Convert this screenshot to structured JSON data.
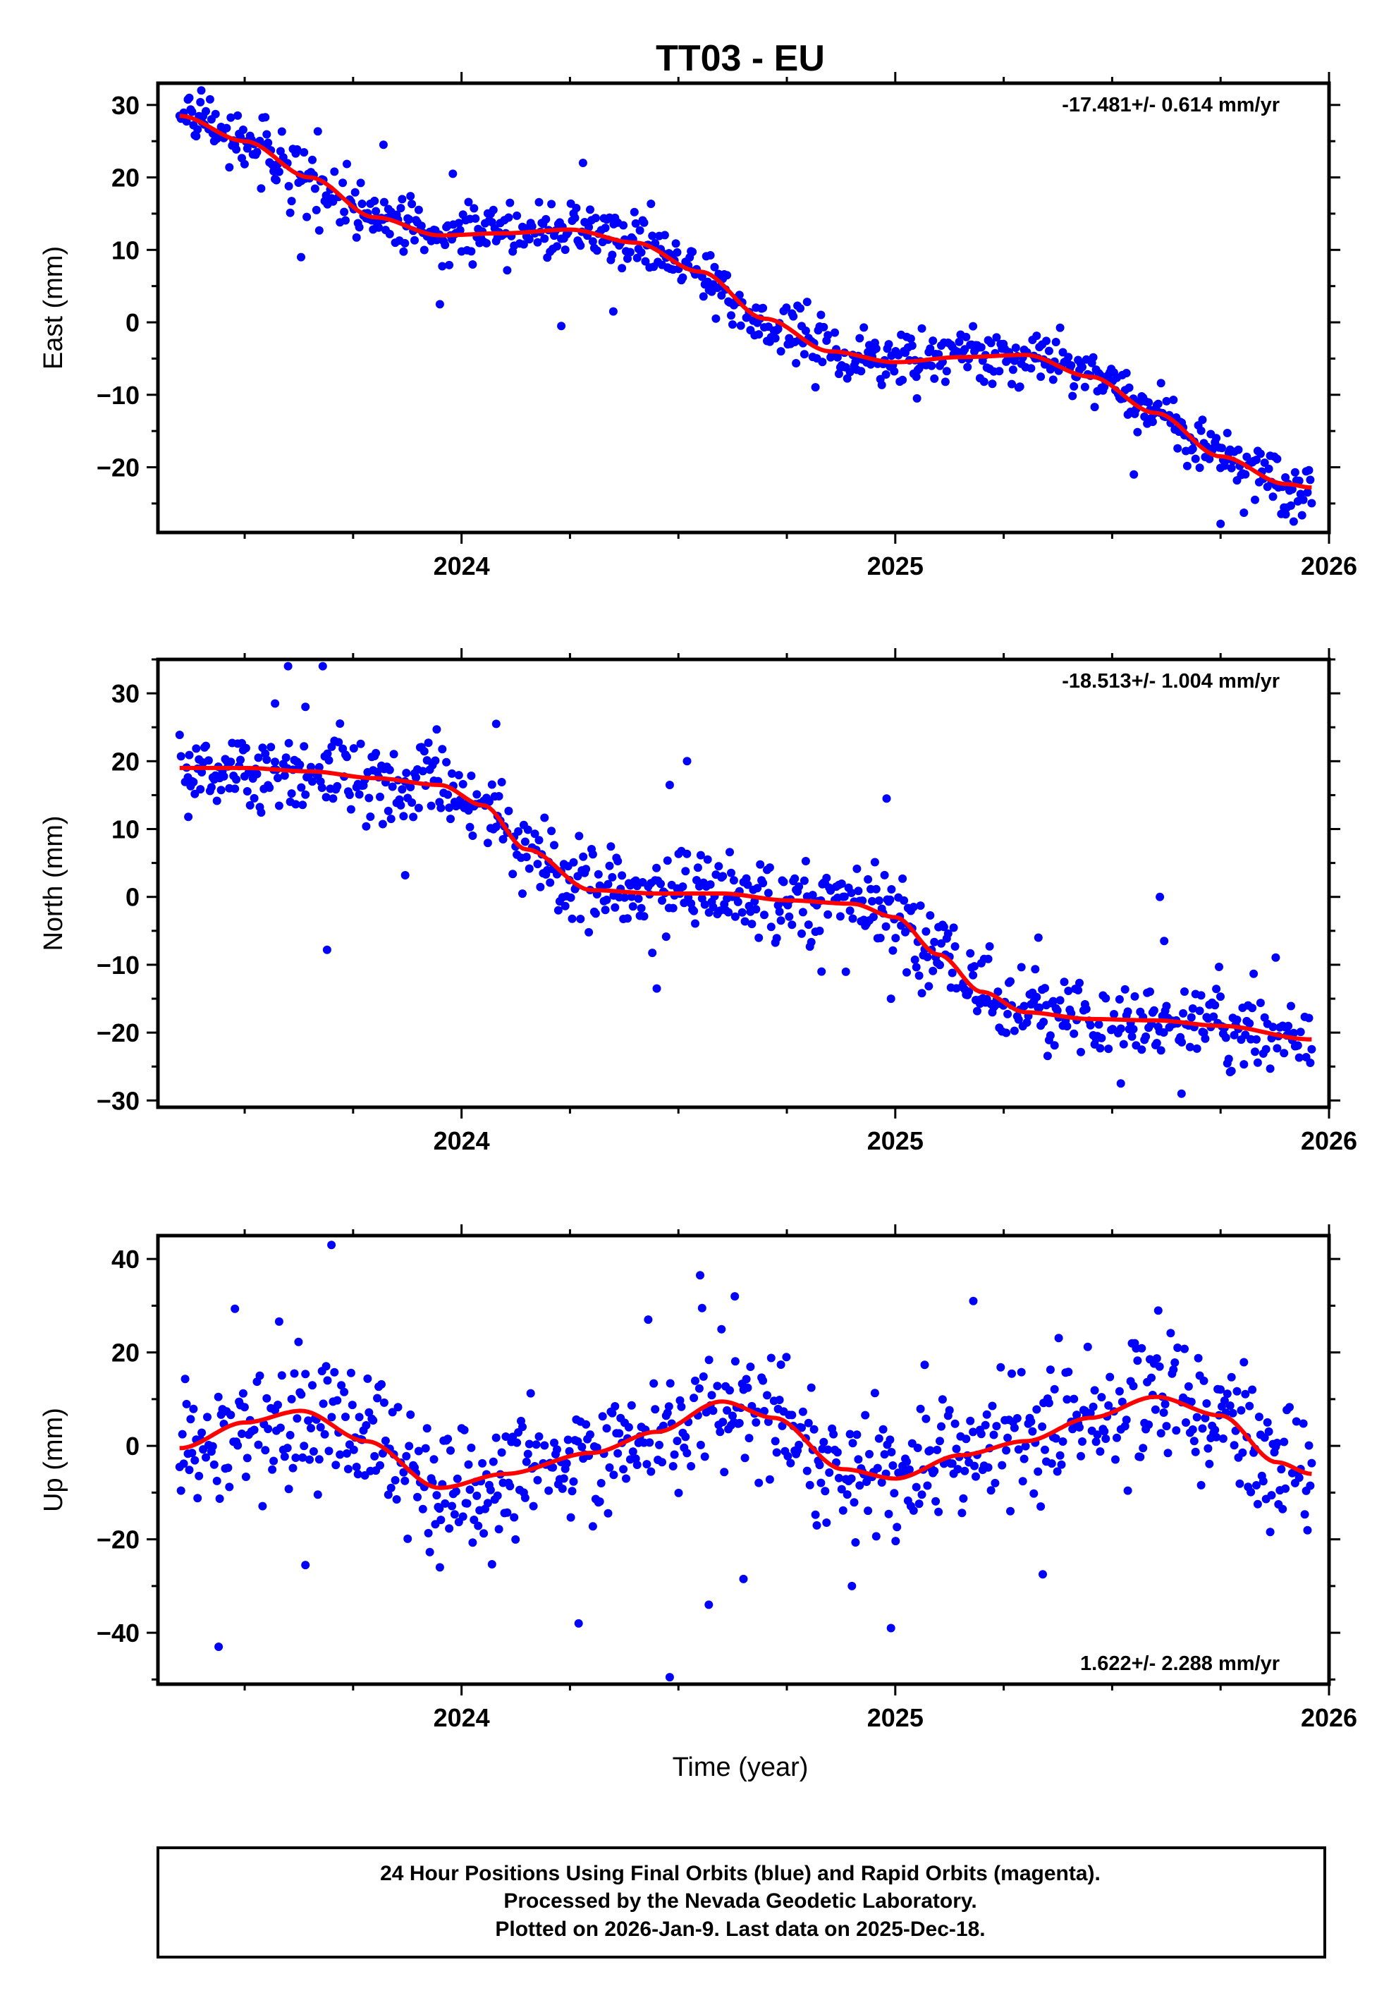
{
  "title": "TT03 - EU",
  "colors": {
    "points": "#0000ff",
    "fit": "#ff0000",
    "axis": "#000000",
    "background": "#ffffff"
  },
  "xlabel": "Time (year)",
  "footer": {
    "line1": "24 Hour Positions Using Final Orbits (blue) and Rapid Orbits (magenta).",
    "line2": "Processed by the Nevada Geodetic Laboratory.",
    "line3": "Plotted on 2026-Jan-9. Last data on 2025-Dec-18."
  },
  "chart_data": [
    {
      "type": "scatter",
      "component": "east",
      "ylabel": "East (mm)",
      "rate_label": "-17.481+/- 0.614 mm/yr",
      "rate_position": "top-right",
      "xlim": [
        2023.3,
        2026.0
      ],
      "ylim": [
        -29,
        33
      ],
      "xticks": [
        2024,
        2025,
        2026
      ],
      "xtick_labels": [
        "2024",
        "2025",
        "2026"
      ],
      "yticks": [
        -20,
        -10,
        0,
        10,
        20,
        30
      ],
      "ytick_labels": [
        "−20",
        "−10",
        "0",
        "10",
        "20",
        "30"
      ],
      "x_range": [
        2023.35,
        2025.96
      ],
      "fit": {
        "x": [
          2023.35,
          2023.5,
          2023.65,
          2023.8,
          2023.95,
          2024.1,
          2024.25,
          2024.4,
          2024.55,
          2024.7,
          2024.85,
          2025.0,
          2025.15,
          2025.3,
          2025.45,
          2025.6,
          2025.75,
          2025.9,
          2025.96
        ],
        "y": [
          28.5,
          25.0,
          20.0,
          14.5,
          12.0,
          12.3,
          12.8,
          11.0,
          7.0,
          0.5,
          -4.0,
          -5.5,
          -4.8,
          -4.5,
          -7.5,
          -12.5,
          -18.5,
          -22.3,
          -22.8
        ]
      },
      "noise": 2.0,
      "outliers": [
        [
          2023.63,
          9.0
        ],
        [
          2023.82,
          24.5
        ],
        [
          2023.98,
          20.5
        ],
        [
          2024.28,
          22.0
        ],
        [
          2024.23,
          -0.5
        ],
        [
          2023.95,
          2.5
        ],
        [
          2024.35,
          1.5
        ],
        [
          2025.05,
          -10.5
        ],
        [
          2025.75,
          -27.8
        ],
        [
          2025.55,
          -21.0
        ],
        [
          2023.4,
          32.0
        ],
        [
          2025.9,
          -26.5
        ]
      ]
    },
    {
      "type": "scatter",
      "component": "north",
      "ylabel": "North (mm)",
      "rate_label": "-18.513+/- 1.004 mm/yr",
      "rate_position": "top-right",
      "xlim": [
        2023.3,
        2026.0
      ],
      "ylim": [
        -31,
        35
      ],
      "xticks": [
        2024,
        2025,
        2026
      ],
      "xtick_labels": [
        "2024",
        "2025",
        "2026"
      ],
      "yticks": [
        -30,
        -20,
        -10,
        0,
        10,
        20,
        30
      ],
      "ytick_labels": [
        "−30",
        "−20",
        "−10",
        "0",
        "10",
        "20",
        "30"
      ],
      "x_range": [
        2023.35,
        2025.96
      ],
      "fit": {
        "x": [
          2023.35,
          2023.5,
          2023.65,
          2023.8,
          2023.95,
          2024.05,
          2024.15,
          2024.3,
          2024.45,
          2024.6,
          2024.75,
          2024.9,
          2025.0,
          2025.1,
          2025.2,
          2025.3,
          2025.45,
          2025.6,
          2025.75,
          2025.96
        ],
        "y": [
          19.0,
          19.0,
          18.5,
          17.5,
          16.5,
          13.5,
          7.0,
          1.0,
          0.5,
          0.5,
          -0.5,
          -1.0,
          -3.0,
          -8.5,
          -14.0,
          -17.0,
          -18.0,
          -18.2,
          -19.0,
          -21.0
        ]
      },
      "noise": 3.0,
      "outliers": [
        [
          2023.6,
          34.0
        ],
        [
          2023.68,
          34.0
        ],
        [
          2023.64,
          28.0
        ],
        [
          2023.57,
          28.5
        ],
        [
          2023.69,
          -7.8
        ],
        [
          2023.87,
          3.2
        ],
        [
          2024.08,
          25.5
        ],
        [
          2024.52,
          20.0
        ],
        [
          2024.48,
          16.5
        ],
        [
          2024.45,
          -13.5
        ],
        [
          2024.98,
          14.5
        ],
        [
          2024.99,
          -15.0
        ],
        [
          2025.33,
          -6.0
        ],
        [
          2025.61,
          0.0
        ],
        [
          2025.62,
          -6.5
        ],
        [
          2025.66,
          -29.0
        ],
        [
          2025.52,
          -27.5
        ],
        [
          2024.83,
          -11.0
        ],
        [
          2023.37,
          11.8
        ]
      ]
    },
    {
      "type": "scatter",
      "component": "up",
      "ylabel": "Up (mm)",
      "rate_label": "1.622+/- 2.288 mm/yr",
      "rate_position": "bottom-right",
      "xlim": [
        2023.3,
        2026.0
      ],
      "ylim": [
        -51,
        45
      ],
      "xticks": [
        2024,
        2025,
        2026
      ],
      "xtick_labels": [
        "2024",
        "2025",
        "2026"
      ],
      "yticks": [
        -40,
        -20,
        0,
        20,
        40
      ],
      "ytick_labels": [
        "−40",
        "−20",
        "0",
        "20",
        "40"
      ],
      "x_range": [
        2023.35,
        2025.96
      ],
      "fit": {
        "x": [
          2023.35,
          2023.5,
          2023.63,
          2023.78,
          2023.95,
          2024.1,
          2024.3,
          2024.45,
          2024.6,
          2024.72,
          2024.88,
          2025.0,
          2025.15,
          2025.3,
          2025.45,
          2025.6,
          2025.75,
          2025.88,
          2025.96
        ],
        "y": [
          -0.5,
          5.0,
          7.5,
          1.0,
          -9.0,
          -6.0,
          -1.5,
          3.0,
          9.5,
          6.0,
          -5.0,
          -7.0,
          -2.0,
          1.0,
          6.0,
          10.5,
          6.5,
          -3.5,
          -6.0
        ]
      },
      "noise": 7.0,
      "outliers": [
        [
          2023.7,
          43.0
        ],
        [
          2023.44,
          -43.0
        ],
        [
          2024.48,
          -49.5
        ],
        [
          2024.99,
          -39.0
        ],
        [
          2024.27,
          -38.0
        ],
        [
          2024.55,
          36.5
        ],
        [
          2024.63,
          32.0
        ],
        [
          2024.9,
          -30.0
        ],
        [
          2025.18,
          31.0
        ],
        [
          2025.34,
          -27.5
        ],
        [
          2024.57,
          -34.0
        ],
        [
          2023.64,
          -25.5
        ],
        [
          2024.65,
          -28.5
        ],
        [
          2023.95,
          -26.0
        ]
      ]
    }
  ]
}
